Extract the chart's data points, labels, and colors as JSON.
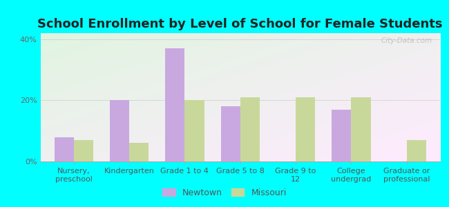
{
  "title": "School Enrollment by Level of School for Female Students",
  "categories": [
    "Nursery,\npreschool",
    "Kindergarten",
    "Grade 1 to 4",
    "Grade 5 to 8",
    "Grade 9 to\n12",
    "College\nundergrad",
    "Graduate or\nprofessional"
  ],
  "newtown_values": [
    8,
    20,
    37,
    18,
    0,
    17,
    0
  ],
  "missouri_values": [
    7,
    6,
    20,
    21,
    21,
    21,
    7
  ],
  "newtown_color": "#c9a8e0",
  "missouri_color": "#c8d89a",
  "background_outer": "#00ffff",
  "title_fontsize": 13,
  "tick_fontsize": 8,
  "legend_fontsize": 9,
  "ylim": [
    0,
    42
  ],
  "yticks": [
    0,
    20,
    40
  ],
  "ytick_labels": [
    "0%",
    "20%",
    "40%"
  ],
  "bar_width": 0.35,
  "legend_labels": [
    "Newtown",
    "Missouri"
  ],
  "watermark_text": "City-Data.com"
}
